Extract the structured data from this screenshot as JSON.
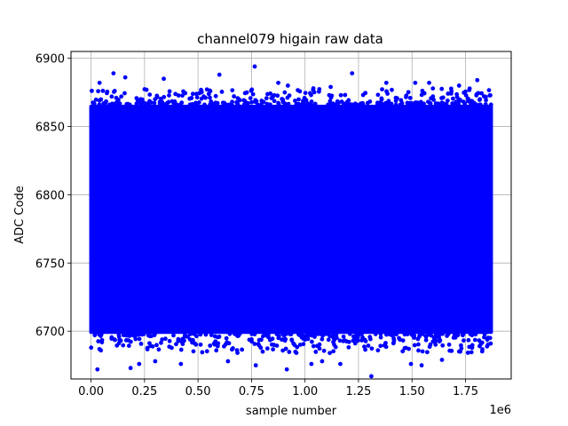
{
  "chart_data": {
    "type": "scatter",
    "title": "channel079 higain raw data",
    "xlabel": "sample number",
    "ylabel": "ADC Code",
    "x_offset_text": "1e6",
    "xlim": [
      -0.0935,
      1.9635
    ],
    "ylim": [
      6665,
      6905
    ],
    "x_ticks": [
      0.0,
      0.25,
      0.5,
      0.75,
      1.0,
      1.25,
      1.5,
      1.75
    ],
    "x_tick_labels": [
      "0.00",
      "0.25",
      "0.50",
      "0.75",
      "1.00",
      "1.25",
      "1.50",
      "1.75"
    ],
    "y_ticks": [
      6700,
      6750,
      6800,
      6850,
      6900
    ],
    "y_tick_labels": [
      "6700",
      "6750",
      "6800",
      "6850",
      "6900"
    ],
    "grid": true,
    "marker_color": "#0000ff",
    "series": [
      {
        "x_range": [
          0.0,
          1.87
        ],
        "dense_band": [
          6698,
          6866
        ],
        "outliers": [
          [
            0.105,
            6889
          ],
          [
            0.04,
            6882
          ],
          [
            0.16,
            6886
          ],
          [
            0.34,
            6885
          ],
          [
            0.6,
            6888
          ],
          [
            0.765,
            6894
          ],
          [
            0.875,
            6882
          ],
          [
            1.22,
            6889
          ],
          [
            1.38,
            6882
          ],
          [
            1.515,
            6882
          ],
          [
            1.58,
            6882
          ],
          [
            1.72,
            6880
          ],
          [
            1.805,
            6884
          ],
          [
            0.92,
            6880
          ],
          [
            1.12,
            6879
          ],
          [
            0.03,
            6672
          ],
          [
            0.185,
            6673
          ],
          [
            0.225,
            6676
          ],
          [
            0.42,
            6676
          ],
          [
            0.77,
            6675
          ],
          [
            0.915,
            6672
          ],
          [
            1.03,
            6676
          ],
          [
            1.08,
            6678
          ],
          [
            1.165,
            6676
          ],
          [
            1.31,
            6667
          ],
          [
            1.495,
            6676
          ],
          [
            1.545,
            6675
          ],
          [
            0.3,
            6678
          ],
          [
            1.64,
            6679
          ],
          [
            0.64,
            6678
          ]
        ]
      }
    ]
  }
}
